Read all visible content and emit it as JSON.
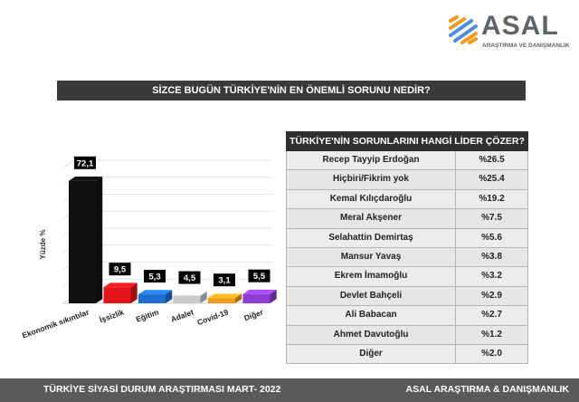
{
  "logo": {
    "name": "ASAL",
    "subtitle": "ARAŞTIRMA VE DANIŞMANLIK"
  },
  "question": "SİZCE BUGÜN TÜRKİYE'NİN EN ÖNEMLİ SORUNU NEDİR?",
  "table": {
    "title": "TÜRKİYE'NİN SORUNLARINI HANGİ LİDER ÇÖZER?",
    "rows": [
      {
        "name": "Recep Tayyip Erdoğan",
        "value": "%26.5"
      },
      {
        "name": "Hiçbiri/Fikrim yok",
        "value": "%25.4"
      },
      {
        "name": "Kemal Kılıçdaroğlu",
        "value": "%19.2"
      },
      {
        "name": "Meral Akşener",
        "value": "%7.5"
      },
      {
        "name": "Selahattin Demirtaş",
        "value": "%5.6"
      },
      {
        "name": "Mansur Yavaş",
        "value": "%3.8"
      },
      {
        "name": "Ekrem İmamoğlu",
        "value": "%3.2"
      },
      {
        "name": "Devlet Bahçeli",
        "value": "%2.9"
      },
      {
        "name": "Ali Babacan",
        "value": "%2.7"
      },
      {
        "name": "Ahmet Davutoğlu",
        "value": "%1.2"
      },
      {
        "name": "Diğer",
        "value": "%2.0"
      }
    ]
  },
  "chart_data": {
    "type": "bar",
    "ylabel": "Yüzde %",
    "categories": [
      "Ekonomik sıkıntılar",
      "İşsizlik",
      "Eğitim",
      "Adalet",
      "Covid-19",
      "Diğer"
    ],
    "values": [
      72.1,
      9.5,
      5.3,
      4.5,
      3.1,
      5.5
    ],
    "labels": [
      "72,1",
      "9,5",
      "5,3",
      "4,5",
      "3,1",
      "5,5"
    ],
    "colors": [
      "#111111",
      "#e3171b",
      "#1f6fd1",
      "#c8c8c8",
      "#f39a1c",
      "#8a3fd0"
    ],
    "ylim": [
      0,
      80
    ],
    "grid": true
  },
  "footer": {
    "left": "TÜRKİYE SİYASİ DURUM ARAŞTIRMASI MART- 2022",
    "right": "ASAL ARAŞTIRMA & DANIŞMANLIK"
  }
}
